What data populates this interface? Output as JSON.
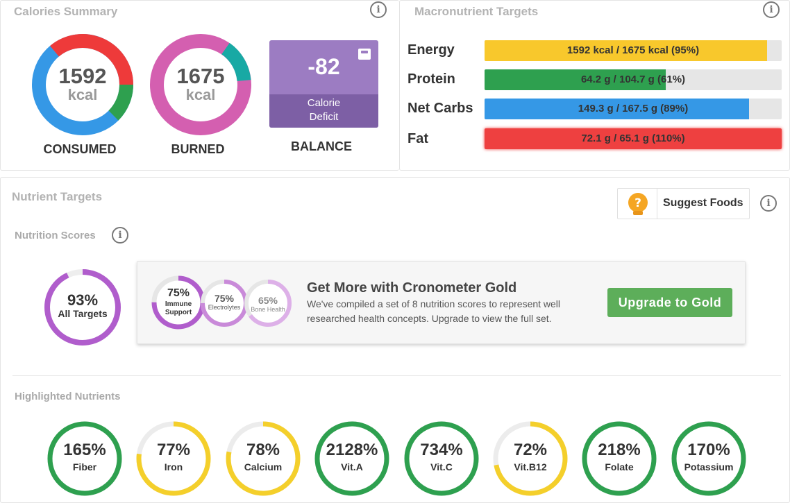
{
  "calories_summary": {
    "title": "Calories Summary",
    "consumed": {
      "value": "1592",
      "unit": "kcal",
      "label": "CONSUMED"
    },
    "burned": {
      "value": "1675",
      "unit": "kcal",
      "label": "BURNED"
    },
    "balance": {
      "value": "-82",
      "sub_line1": "Calorie",
      "sub_line2": "Deficit",
      "label": "BALANCE",
      "color": "#9c7cc2"
    }
  },
  "macro_targets": {
    "title": "Macronutrient Targets",
    "bars": [
      {
        "label": "Energy",
        "text": "1592 kcal / 1675 kcal (95%)",
        "percent": 95,
        "color": "#f8c82c"
      },
      {
        "label": "Protein",
        "text": "64.2 g / 104.7 g (61%)",
        "percent": 61,
        "color": "#2ea04f"
      },
      {
        "label": "Net Carbs",
        "text": "149.3 g / 167.5 g (89%)",
        "percent": 89,
        "color": "#3598e6"
      },
      {
        "label": "Fat",
        "text": "72.1 g / 65.1 g (110%)",
        "percent": 100,
        "color": "#ee4040"
      }
    ]
  },
  "nutrient_targets": {
    "title": "Nutrient Targets",
    "suggest_foods": "Suggest Foods",
    "nutrition_scores_title": "Nutrition Scores",
    "all_targets": {
      "value": "93%",
      "label": "All Targets",
      "percent": 93
    },
    "gold_promo": {
      "scores": [
        {
          "value": "75%",
          "label1": "Immune",
          "label2": "Support",
          "percent": 75
        },
        {
          "value": "75%",
          "label1": "Electrolytes",
          "label2": "",
          "percent": 75
        },
        {
          "value": "65%",
          "label1": "Bone Health",
          "label2": "",
          "percent": 65
        }
      ],
      "heading": "Get More with Cronometer Gold",
      "line1": "We've compiled a set of 8 nutrition scores to represent well",
      "line2": "researched health concepts. Upgrade to view the full set.",
      "button": "Upgrade to Gold"
    },
    "highlighted_title": "Highlighted Nutrients",
    "highlighted": [
      {
        "value": "165%",
        "name": "Fiber",
        "percent": 100,
        "color": "#2ea04f"
      },
      {
        "value": "77%",
        "name": "Iron",
        "percent": 77,
        "color": "#f4cf2b"
      },
      {
        "value": "78%",
        "name": "Calcium",
        "percent": 78,
        "color": "#f4cf2b"
      },
      {
        "value": "2128%",
        "name": "Vit.A",
        "percent": 100,
        "color": "#2ea04f"
      },
      {
        "value": "734%",
        "name": "Vit.C",
        "percent": 100,
        "color": "#2ea04f"
      },
      {
        "value": "72%",
        "name": "Vit.B12",
        "percent": 72,
        "color": "#f4cf2b"
      },
      {
        "value": "218%",
        "name": "Folate",
        "percent": 100,
        "color": "#2ea04f"
      },
      {
        "value": "170%",
        "name": "Potassium",
        "percent": 100,
        "color": "#2ea04f"
      }
    ]
  },
  "icons": {
    "info": "info-icon",
    "lightbulb": "lightbulb-question-icon",
    "scale": "scale-icon"
  }
}
